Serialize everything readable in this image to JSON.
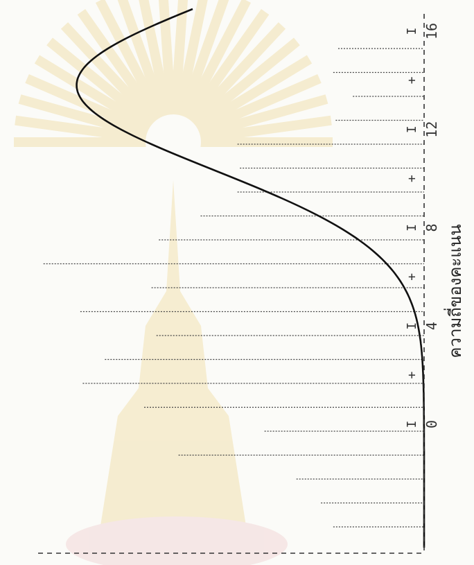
{
  "chart_data": {
    "type": "bar",
    "orientation": "rotated 90deg (frequency extends right-to-left)",
    "xlabel": "ความถี่ของคะแนน",
    "x_ticks": [
      {
        "value": 0,
        "label": "0"
      },
      {
        "value": 4,
        "label": "4"
      },
      {
        "value": 8,
        "label": "8"
      },
      {
        "value": 12,
        "label": "12"
      },
      {
        "value": 16,
        "label": "16"
      }
    ],
    "xlim": [
      0,
      16
    ],
    "bar_values": [
      3.5,
      3.7,
      2.9,
      3.6,
      7.6,
      7.5,
      7.6,
      9.1,
      10.8,
      15.5,
      11.1,
      14.0,
      10.9,
      13.0,
      13.9,
      11.4,
      6.5,
      10.0,
      5.2,
      4.2,
      3.7
    ],
    "normal_curve": {
      "mean": 7.6,
      "sd": 3.35,
      "peak": 14.15
    },
    "colors": {
      "curve": "#111111",
      "bars": "#444444",
      "watermark": "#e9c86a"
    }
  }
}
